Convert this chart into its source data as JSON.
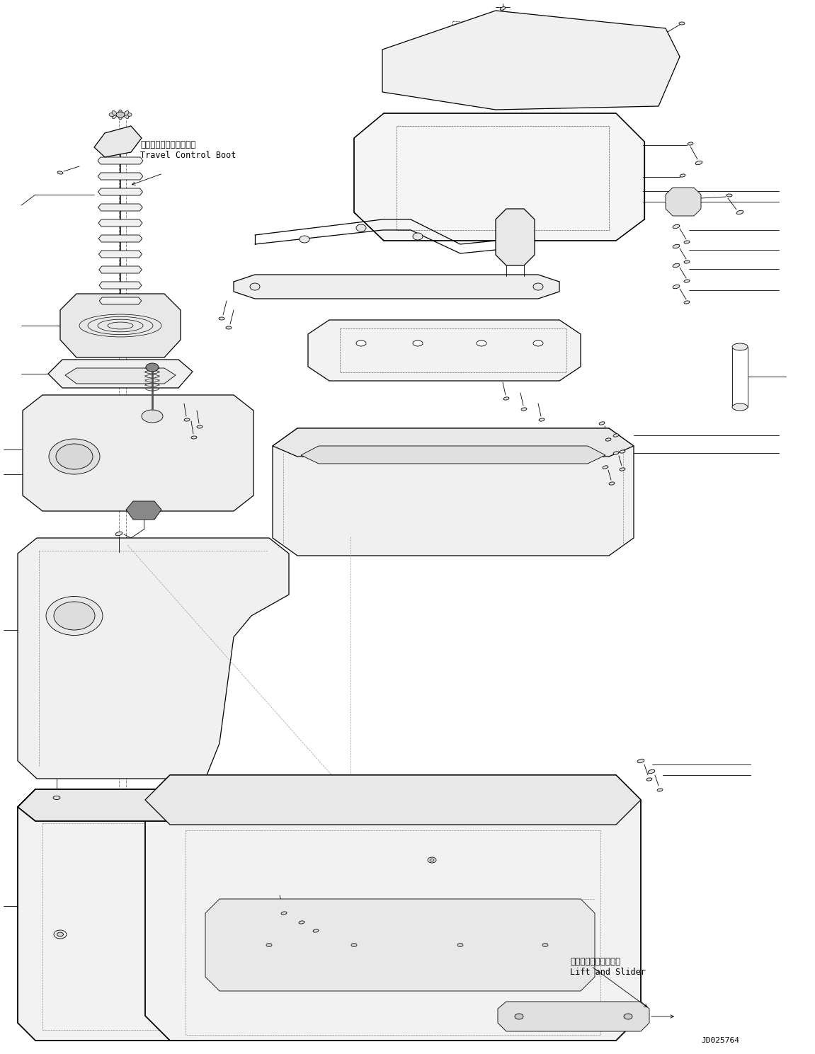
{
  "background_color": "#ffffff",
  "line_color": "#000000",
  "fig_width": 11.51,
  "fig_height": 14.89,
  "dpi": 100,
  "annotation_label1_line1": "走行コントロールブート",
  "annotation_label1_line2": "Travel Control Boot",
  "annotation_label2_line1": "リフトおよびスライダ",
  "annotation_label2_line2": "Lift and Slider",
  "part_number": "JD025764"
}
